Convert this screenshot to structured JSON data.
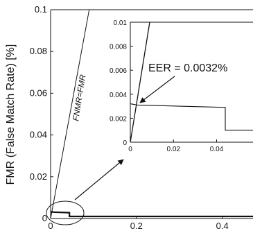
{
  "chart_data": [
    {
      "type": "line",
      "title": "",
      "xlabel": "",
      "ylabel": "FMR (False Match Rate) [%]",
      "xlim": [
        0,
        0.52
      ],
      "ylim": [
        0,
        0.1
      ],
      "x_ticks": [
        0,
        0.2,
        0.4
      ],
      "x_tick_labels": [
        "0",
        "0.2",
        "0.4"
      ],
      "y_ticks": [
        0,
        0.02,
        0.04,
        0.06,
        0.08,
        0.1
      ],
      "y_tick_labels": [
        "0",
        "0.02",
        "0.04",
        "0.06",
        "0.08",
        "0.1"
      ],
      "grid": false,
      "series": [
        {
          "name": "",
          "x": [
            0,
            0.09
          ],
          "y": [
            0,
            0.1
          ]
        },
        {
          "name": "",
          "x": [
            0,
            0.0032,
            0.0032,
            0.044,
            0.044,
            0.52
          ],
          "y": [
            0.0032,
            0.0032,
            0.0031,
            0.0028,
            0.001,
            0.001
          ]
        }
      ],
      "annotations": [
        {
          "text": "FNMR=FMR"
        }
      ]
    },
    {
      "type": "line",
      "title": "",
      "xlabel": "",
      "ylabel": "",
      "xlim": [
        0,
        0.062
      ],
      "ylim": [
        0,
        0.01
      ],
      "x_ticks": [
        0,
        0.02,
        0.04
      ],
      "x_tick_labels": [
        "0",
        "0.02",
        "0.04"
      ],
      "y_ticks": [
        0,
        0.002,
        0.004,
        0.006,
        0.008,
        0.01
      ],
      "y_tick_labels": [
        "0",
        "0.002",
        "0.004",
        "0.006",
        "0.008",
        "0.01"
      ],
      "grid": false,
      "series": [
        {
          "name": "",
          "x": [
            0,
            0.009
          ],
          "y": [
            0,
            0.01
          ]
        },
        {
          "name": "",
          "x": [
            0,
            0.0032,
            0.044,
            0.044,
            0.062
          ],
          "y": [
            0.0032,
            0.0031,
            0.0029,
            0.001,
            0.001
          ]
        }
      ],
      "annotations": [
        {
          "text": "EER = 0.0032%"
        }
      ]
    }
  ]
}
